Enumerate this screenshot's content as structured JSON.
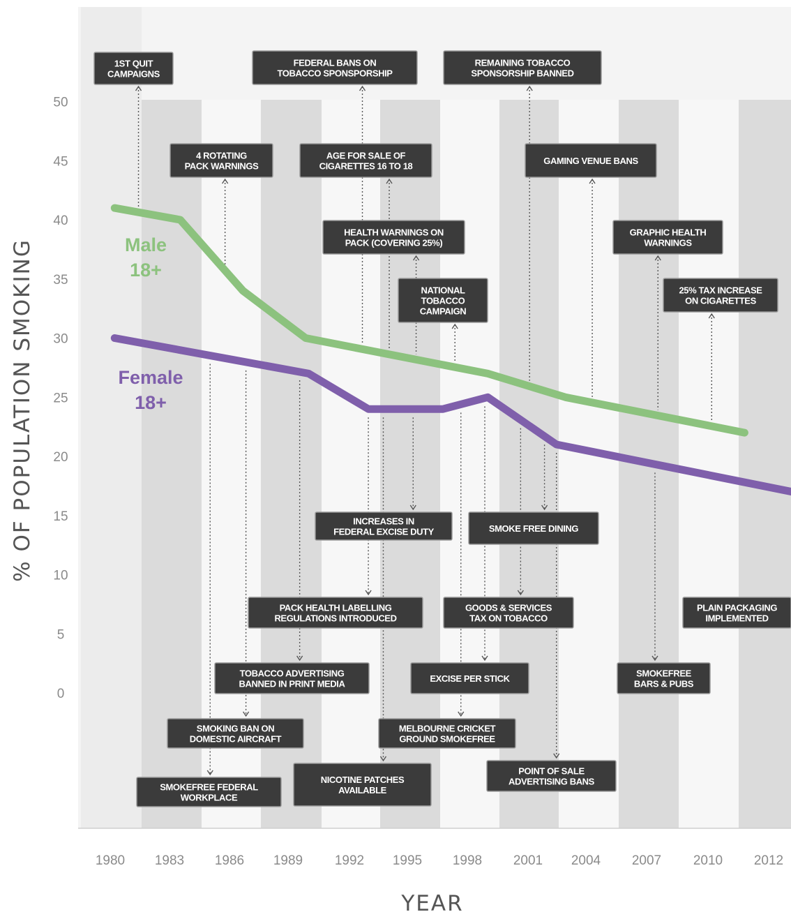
{
  "chart_data": {
    "type": "line",
    "ylabel": "% OF POPULATION SMOKING",
    "xlabel": "YEAR",
    "ylim": [
      0,
      50
    ],
    "yticks": [
      0,
      5,
      10,
      15,
      20,
      25,
      30,
      35,
      40,
      45,
      50
    ],
    "xticks": [
      "1980",
      "1983",
      "1986",
      "1989",
      "1992",
      "1995",
      "1998",
      "2001",
      "2004",
      "2007",
      "2010",
      "2012"
    ],
    "series": [
      {
        "name": "Male 18+",
        "label_lines": [
          "Male",
          "18+"
        ],
        "color": "#8cc27e",
        "points": [
          [
            0.05,
            41
          ],
          [
            1.15,
            40
          ],
          [
            2.2,
            34
          ],
          [
            3.25,
            30
          ],
          [
            6.3,
            27
          ],
          [
            7.6,
            25
          ],
          [
            10.6,
            22
          ]
        ]
      },
      {
        "name": "Female 18+",
        "label_lines": [
          "Female",
          "18+"
        ],
        "color": "#7f5fab",
        "points": [
          [
            0.05,
            30
          ],
          [
            3.3,
            27
          ],
          [
            4.3,
            24
          ],
          [
            5.55,
            24
          ],
          [
            6.3,
            25
          ],
          [
            7.45,
            21
          ],
          [
            11.4,
            17
          ]
        ]
      }
    ],
    "band_colors": [
      "#ececec",
      "#dbdbdb",
      "#f7f7f7"
    ],
    "annotations": [
      {
        "lines": [
          "1ST QUIT",
          "CAMPAIGNS"
        ],
        "anchor": 0.45,
        "side": "above"
      },
      {
        "lines": [
          "FEDERAL BANS ON",
          "TOBACCO SPONSPORSHIP"
        ],
        "anchor": 4.2,
        "side": "above"
      },
      {
        "lines": [
          "REMAINING TOBACCO",
          "SPONSORSHIP BANNED"
        ],
        "anchor": 7.0,
        "side": "above"
      },
      {
        "lines": [
          "4 ROTATING",
          "PACK WARNINGS"
        ],
        "anchor": 1.9,
        "side": "above"
      },
      {
        "lines": [
          "AGE FOR SALE OF",
          "CIGARETTES 16 TO 18"
        ],
        "anchor": 4.65,
        "side": "above"
      },
      {
        "lines": [
          "GAMING VENUE BANS"
        ],
        "anchor": 8.05,
        "side": "above"
      },
      {
        "lines": [
          "HEALTH WARNINGS ON",
          "PACK (COVERING 25%)"
        ],
        "anchor": 5.1,
        "side": "above"
      },
      {
        "lines": [
          "GRAPHIC HEALTH",
          "WARNINGS"
        ],
        "anchor": 9.15,
        "side": "above"
      },
      {
        "lines": [
          "NATIONAL",
          "TOBACCO",
          "CAMPAIGN"
        ],
        "anchor": 5.75,
        "side": "above"
      },
      {
        "lines": [
          "25% TAX INCREASE",
          "ON CIGARETTES"
        ],
        "anchor": 10.05,
        "side": "above"
      },
      {
        "lines": [
          "INCREASES IN",
          "FEDERAL EXCISE DUTY"
        ],
        "anchor": 5.05,
        "side": "below"
      },
      {
        "lines": [
          "SMOKE FREE DINING"
        ],
        "anchor": 7.25,
        "side": "below"
      },
      {
        "lines": [
          "PACK HEALTH LABELLING",
          "REGULATIONS INTRODUCED"
        ],
        "anchor": 4.3,
        "side": "below"
      },
      {
        "lines": [
          "GOODS & SERVICES",
          "TAX ON TOBACCO"
        ],
        "anchor": 6.85,
        "side": "below"
      },
      {
        "lines": [
          "PLAIN PACKAGING",
          "IMPLEMENTED"
        ],
        "anchor": 11.55,
        "side": "below"
      },
      {
        "lines": [
          "TOBACCO ADVERTISING",
          "BANNED IN PRINT MEDIA"
        ],
        "anchor": 3.15,
        "side": "below"
      },
      {
        "lines": [
          "EXCISE PER STICK"
        ],
        "anchor": 6.25,
        "side": "below"
      },
      {
        "lines": [
          "SMOKEFREE",
          "BARS & PUBS"
        ],
        "anchor": 9.1,
        "side": "below"
      },
      {
        "lines": [
          "SMOKING BAN ON",
          "DOMESTIC AIRCRAFT"
        ],
        "anchor": 2.25,
        "side": "below"
      },
      {
        "lines": [
          "MELBOURNE CRICKET",
          "GROUND SMOKEFREE"
        ],
        "anchor": 5.85,
        "side": "below"
      },
      {
        "lines": [
          "SMOKEFREE FEDERAL",
          "WORKPLACE"
        ],
        "anchor": 1.65,
        "side": "below"
      },
      {
        "lines": [
          "NICOTINE PATCHES",
          "AVAILABLE"
        ],
        "anchor": 4.55,
        "side": "below"
      },
      {
        "lines": [
          "POINT OF SALE",
          "ADVERTISING BANS"
        ],
        "anchor": 7.45,
        "side": "below"
      }
    ]
  }
}
